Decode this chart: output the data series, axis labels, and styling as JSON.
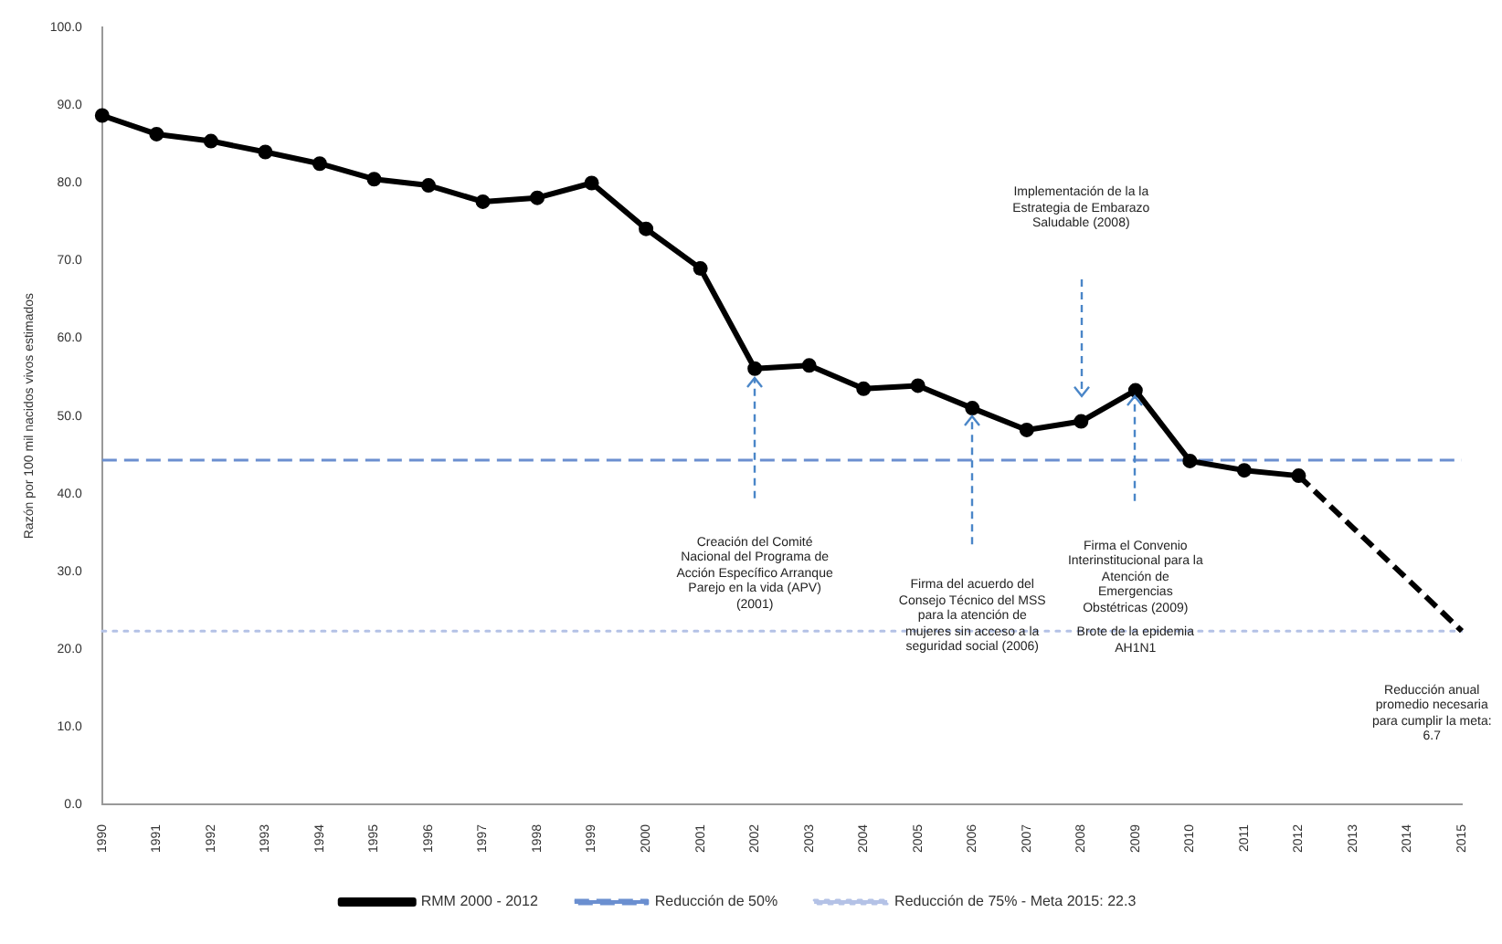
{
  "chart_data": {
    "type": "line",
    "ylabel": "Razón por 100 mil nacidos vivos estimados",
    "categories": [
      "1990",
      "1991",
      "1992",
      "1993",
      "1994",
      "1995",
      "1996",
      "1997",
      "1998",
      "1999",
      "2000",
      "2001",
      "2002",
      "2003",
      "2004",
      "2005",
      "2006",
      "2007",
      "2008",
      "2009",
      "2010",
      "2011",
      "2012",
      "2013",
      "2014",
      "2015"
    ],
    "series": [
      {
        "name": "RMM 2000 - 2012",
        "color": "#000000",
        "marker": "circle",
        "line_style": "solid",
        "values": [
          88.7,
          86.3,
          85.4,
          84.0,
          82.5,
          80.5,
          79.7,
          77.6,
          78.1,
          80.0,
          74.1,
          69.0,
          56.1,
          56.5,
          53.5,
          53.9,
          51.0,
          48.2,
          49.3,
          53.3,
          44.2,
          43.0,
          42.3,
          null,
          null,
          null
        ]
      },
      {
        "color": "#000000",
        "marker": "none",
        "line_style": "dashed",
        "values": [
          null,
          null,
          null,
          null,
          null,
          null,
          null,
          null,
          null,
          null,
          null,
          null,
          null,
          null,
          null,
          null,
          null,
          null,
          null,
          null,
          null,
          null,
          42.3,
          35.6,
          29.0,
          22.3
        ]
      },
      {
        "name": "Reducción de 50%",
        "color": "#6b8fd0",
        "marker": "none",
        "line_style": "dashed",
        "values": [
          44.3,
          44.3,
          44.3,
          44.3,
          44.3,
          44.3,
          44.3,
          44.3,
          44.3,
          44.3,
          44.3,
          44.3,
          44.3,
          44.3,
          44.3,
          44.3,
          44.3,
          44.3,
          44.3,
          44.3,
          44.3,
          44.3,
          44.3,
          44.3,
          44.3,
          44.3
        ]
      },
      {
        "name": "Reducción de 75% - Meta 2015: 22.3",
        "color": "#b4c2e6",
        "marker": "none",
        "line_style": "dotted",
        "values": [
          22.3,
          22.3,
          22.3,
          22.3,
          22.3,
          22.3,
          22.3,
          22.3,
          22.3,
          22.3,
          22.3,
          22.3,
          22.3,
          22.3,
          22.3,
          22.3,
          22.3,
          22.3,
          22.3,
          22.3,
          22.3,
          22.3,
          22.3,
          22.3,
          22.3,
          22.3
        ]
      }
    ],
    "ylim": [
      0,
      100
    ],
    "yticks": [
      {
        "value": 0,
        "label": "0.0"
      },
      {
        "value": 10,
        "label": "10.0"
      },
      {
        "value": 20,
        "label": "20.0"
      },
      {
        "value": 30,
        "label": "30.0"
      },
      {
        "value": 40,
        "label": "40.0"
      },
      {
        "value": 50,
        "label": "50.0"
      },
      {
        "value": 60,
        "label": "60.0"
      },
      {
        "value": 70,
        "label": "70.0"
      },
      {
        "value": 80,
        "label": "80.0"
      },
      {
        "value": 90,
        "label": "90.0"
      },
      {
        "value": 100,
        "label": "100.0"
      }
    ],
    "grid": false,
    "legend": "bottom",
    "annotations": [
      "Creación del Comité Nacional del Programa de Acción Específico Arranque Parejo en la vida (APV) (2001)",
      "Firma del acuerdo del Consejo Técnico del MSS para la atención de mujeres sin acceso a la seguridad social (2006)",
      "Implementación de la la Estrategia de Embarazo Saludable (2008)",
      "Firma el Convenio Interinstitucional para la Atención de Emergencias Obstétricas (2009)",
      "Brote de la epidemia AH1N1",
      "Reducción anual promedio necesaria para cumplir la meta: 6.7"
    ]
  }
}
